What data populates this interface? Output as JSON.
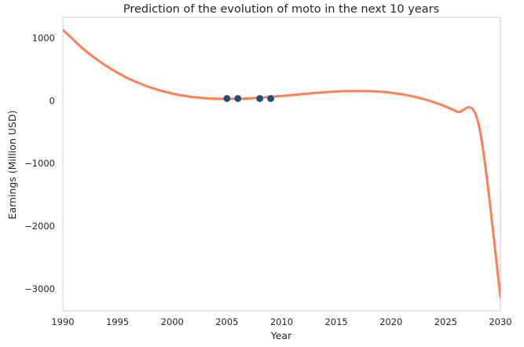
{
  "chart_data": {
    "type": "line",
    "title": "Prediction of the evolution of moto in the next 10 years",
    "xlabel": "Year",
    "ylabel": "Earnings (Million USD)",
    "xlim": [
      1990,
      2030
    ],
    "ylim": [
      -3350,
      1330
    ],
    "grid": false,
    "x_ticks": [
      1990,
      1995,
      2000,
      2005,
      2010,
      2015,
      2020,
      2025,
      2030
    ],
    "x_tick_labels": [
      "1990",
      "1995",
      "2000",
      "2005",
      "2010",
      "2015",
      "2020",
      "2025",
      "2030"
    ],
    "y_ticks": [
      1000,
      0,
      -1000,
      -2000,
      -3000
    ],
    "y_tick_labels": [
      "1000",
      "0",
      "−1000",
      "−2000",
      "−3000"
    ],
    "series": [
      {
        "kind": "line",
        "color": "#ff7f50",
        "x": [
          1990,
          1992,
          1994,
          1996,
          1998,
          2000,
          2002,
          2004,
          2006,
          2008,
          2010,
          2012,
          2014,
          2016,
          2018,
          2020,
          2022,
          2024,
          2026,
          2028,
          2030
        ],
        "y": [
          1130,
          807,
          551,
          355,
          212,
          115,
          57,
          32,
          31,
          48,
          76,
          108,
          136,
          153,
          153,
          127,
          69,
          -28,
          -172,
          -371,
          -3130
        ]
      },
      {
        "kind": "scatter",
        "color": "#1f4e79",
        "x": [
          2005,
          2006,
          2008,
          2009
        ],
        "y": [
          35,
          35,
          35,
          35
        ]
      }
    ]
  }
}
